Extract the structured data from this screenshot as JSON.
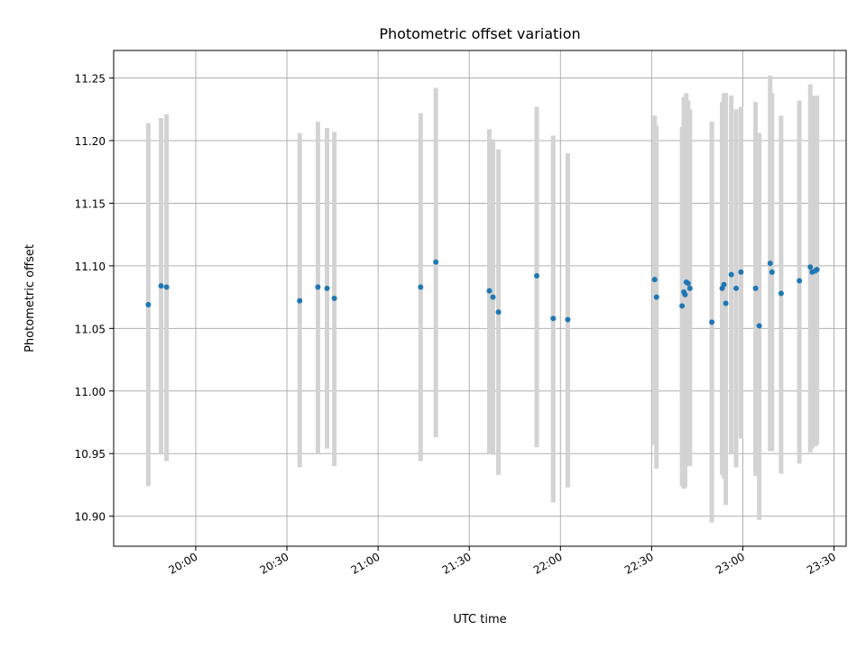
{
  "chart_data": {
    "type": "scatter",
    "title": "Photometric offset variation",
    "xlabel": "UTC time",
    "ylabel": "Photometric offset",
    "x_unit": "UTC time (HH:MM)",
    "xlim": [
      "19:33",
      "23:34"
    ],
    "ylim": [
      10.876,
      11.272
    ],
    "x_ticks": [
      "20:00",
      "20:30",
      "21:00",
      "21:30",
      "22:00",
      "22:30",
      "23:00",
      "23:30"
    ],
    "y_ticks": [
      "10.90",
      "10.95",
      "11.00",
      "11.05",
      "11.10",
      "11.15",
      "11.20",
      "11.25"
    ],
    "grid": true,
    "marker_color": "#1f77b4",
    "errorbar_color": "#d3d3d3",
    "points": [
      {
        "t": "19:44:24",
        "y": 11.069,
        "lo": 10.924,
        "hi": 11.214
      },
      {
        "t": "19:48:36",
        "y": 11.084,
        "lo": 10.95,
        "hi": 11.218
      },
      {
        "t": "19:50:24",
        "y": 11.083,
        "lo": 10.944,
        "hi": 11.221
      },
      {
        "t": "20:34:12",
        "y": 11.072,
        "lo": 10.939,
        "hi": 11.206
      },
      {
        "t": "20:40:12",
        "y": 11.083,
        "lo": 10.95,
        "hi": 11.215
      },
      {
        "t": "20:43:12",
        "y": 11.082,
        "lo": 10.954,
        "hi": 11.21
      },
      {
        "t": "20:45:36",
        "y": 11.074,
        "lo": 10.94,
        "hi": 11.207
      },
      {
        "t": "21:14:00",
        "y": 11.083,
        "lo": 10.944,
        "hi": 11.222
      },
      {
        "t": "21:19:00",
        "y": 11.103,
        "lo": 10.963,
        "hi": 11.242
      },
      {
        "t": "21:36:36",
        "y": 11.08,
        "lo": 10.95,
        "hi": 11.209
      },
      {
        "t": "21:37:48",
        "y": 11.075,
        "lo": 10.949,
        "hi": 11.201
      },
      {
        "t": "21:39:36",
        "y": 11.063,
        "lo": 10.933,
        "hi": 11.193
      },
      {
        "t": "21:52:12",
        "y": 11.092,
        "lo": 10.955,
        "hi": 11.227
      },
      {
        "t": "21:57:36",
        "y": 11.058,
        "lo": 10.911,
        "hi": 11.204
      },
      {
        "t": "22:02:24",
        "y": 11.057,
        "lo": 10.923,
        "hi": 11.19
      },
      {
        "t": "22:31:00",
        "y": 11.089,
        "lo": 10.957,
        "hi": 11.22
      },
      {
        "t": "22:31:36",
        "y": 11.075,
        "lo": 10.938,
        "hi": 11.212
      },
      {
        "t": "22:40:00",
        "y": 11.068,
        "lo": 10.924,
        "hi": 11.211
      },
      {
        "t": "22:40:36",
        "y": 11.079,
        "lo": 10.922,
        "hi": 11.235
      },
      {
        "t": "22:41:00",
        "y": 11.077,
        "lo": 10.923,
        "hi": 11.232
      },
      {
        "t": "22:41:24",
        "y": 11.087,
        "lo": 10.94,
        "hi": 11.238
      },
      {
        "t": "22:42:00",
        "y": 11.086,
        "lo": 10.94,
        "hi": 11.232
      },
      {
        "t": "22:42:36",
        "y": 11.082,
        "lo": 10.94,
        "hi": 11.225
      },
      {
        "t": "22:49:48",
        "y": 11.055,
        "lo": 10.895,
        "hi": 11.215
      },
      {
        "t": "22:53:12",
        "y": 11.082,
        "lo": 10.933,
        "hi": 11.231
      },
      {
        "t": "22:53:48",
        "y": 11.085,
        "lo": 10.93,
        "hi": 11.238
      },
      {
        "t": "22:54:24",
        "y": 11.07,
        "lo": 10.909,
        "hi": 11.238
      },
      {
        "t": "22:56:12",
        "y": 11.093,
        "lo": 10.95,
        "hi": 11.236
      },
      {
        "t": "22:57:48",
        "y": 11.082,
        "lo": 10.939,
        "hi": 11.225
      },
      {
        "t": "22:59:24",
        "y": 11.095,
        "lo": 10.962,
        "hi": 11.227
      },
      {
        "t": "23:04:12",
        "y": 11.082,
        "lo": 10.932,
        "hi": 11.231
      },
      {
        "t": "23:05:24",
        "y": 11.052,
        "lo": 10.897,
        "hi": 11.206
      },
      {
        "t": "23:09:00",
        "y": 11.102,
        "lo": 10.952,
        "hi": 11.252
      },
      {
        "t": "23:09:36",
        "y": 11.095,
        "lo": 10.952,
        "hi": 11.238
      },
      {
        "t": "23:12:36",
        "y": 11.078,
        "lo": 10.934,
        "hi": 11.22
      },
      {
        "t": "23:18:36",
        "y": 11.088,
        "lo": 10.942,
        "hi": 11.232
      },
      {
        "t": "23:22:12",
        "y": 11.099,
        "lo": 10.951,
        "hi": 11.245
      },
      {
        "t": "23:22:48",
        "y": 11.095,
        "lo": 10.954,
        "hi": 11.236
      },
      {
        "t": "23:23:48",
        "y": 11.096,
        "lo": 10.956,
        "hi": 11.235
      },
      {
        "t": "23:24:24",
        "y": 11.097,
        "lo": 10.957,
        "hi": 11.236
      }
    ]
  }
}
